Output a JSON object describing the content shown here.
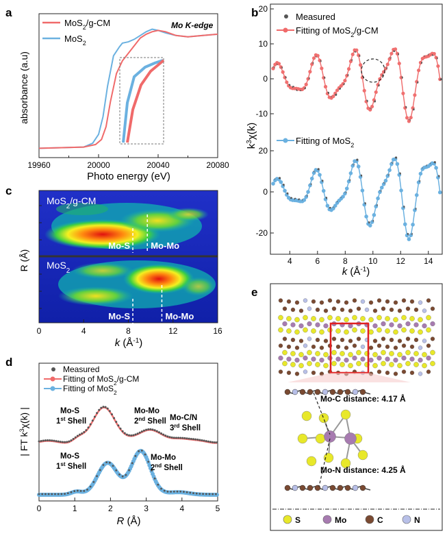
{
  "colors": {
    "mos2_gcm": "#f06a6a",
    "mos2": "#6bb1e0",
    "measured": "#555555",
    "axis": "#222222",
    "gridbox": "#888888"
  },
  "chart_data": [
    {
      "panel": "a",
      "type": "line",
      "annotation": "Mo K-edge",
      "xlabel": "Photo energy (eV)",
      "ylabel": "absorbance (a.u)",
      "xlim": [
        19960,
        20080
      ],
      "xticks": [
        "19960",
        "20000",
        "20040",
        "20080"
      ],
      "series": [
        {
          "name": "MoS",
          "sub": "2",
          "post": "/g-CM",
          "color": "#f06a6a",
          "x": [
            19960,
            19990,
            19998,
            20002,
            20005,
            20008,
            20012,
            20016,
            20020,
            20024,
            20028,
            20032,
            20036,
            20040,
            20045,
            20052,
            20060,
            20070,
            20080
          ],
          "y": [
            0.03,
            0.04,
            0.06,
            0.1,
            0.2,
            0.4,
            0.62,
            0.72,
            0.78,
            0.84,
            0.9,
            0.93,
            0.95,
            0.96,
            0.95,
            0.92,
            0.91,
            0.92,
            0.93
          ]
        },
        {
          "name": "MoS",
          "sub": "2",
          "post": "",
          "color": "#6bb1e0",
          "x": [
            19960,
            19990,
            19996,
            20000,
            20003,
            20006,
            20010,
            20014,
            20016,
            20020,
            20024,
            20028,
            20032,
            20036,
            20040,
            20045,
            20052,
            20060,
            20070,
            20080
          ],
          "y": [
            0.03,
            0.04,
            0.07,
            0.14,
            0.28,
            0.52,
            0.76,
            0.83,
            0.86,
            0.87,
            0.89,
            0.92,
            0.95,
            0.97,
            0.96,
            0.94,
            0.92,
            0.91,
            0.92,
            0.93
          ]
        }
      ]
    },
    {
      "panel": "b",
      "type": "scatter",
      "xlabel": "k (Å-1)",
      "ylabel": "k3χ(k)",
      "xlim": [
        2.6,
        15
      ],
      "xticks": [
        "4",
        "6",
        "8",
        "10",
        "12",
        "14"
      ],
      "top": {
        "ylim": [
          -12,
          22
        ],
        "yticks": [
          "-10",
          "0",
          "10",
          "20"
        ]
      },
      "bottom": {
        "ylim": [
          -24,
          28
        ],
        "yticks": [
          "-20",
          "0",
          "20"
        ]
      },
      "legend": [
        {
          "name": "Measured",
          "sub": "",
          "color": "#555555"
        },
        {
          "name": "Fitting of MoS",
          "sub": "2",
          "post": "/g-CM",
          "color": "#f06a6a"
        },
        {
          "name": "Fitting of MoS",
          "sub": "2",
          "post": "",
          "color": "#6bb1e0"
        }
      ]
    },
    {
      "panel": "c",
      "type": "heatmap",
      "xlabel": "k (Å-1)",
      "ylabel": "R (Å)",
      "xlim": [
        0,
        16
      ],
      "xticks": [
        "0",
        "4",
        "8",
        "12",
        "16"
      ],
      "maps": [
        {
          "title": "MoS",
          "sub": "2",
          "post": "/g-CM",
          "labels": [
            {
              "text": "Mo-S",
              "k": 8.4
            },
            {
              "text": "Mo-Mo",
              "k": 9.7
            }
          ]
        },
        {
          "title": "MoS",
          "sub": "2",
          "post": "",
          "labels": [
            {
              "text": "Mo-S",
              "k": 8.4
            },
            {
              "text": "Mo-Mo",
              "k": 11.0
            }
          ]
        }
      ]
    },
    {
      "panel": "d",
      "type": "line",
      "xlabel": "R (Å)",
      "ylabel": "| FT k3χ(k) |",
      "xlim": [
        0,
        5
      ],
      "xticks": [
        "0",
        "1",
        "2",
        "3",
        "4",
        "5"
      ],
      "legend": [
        {
          "name": "Measured",
          "sub": "",
          "post": "",
          "color": "#555555"
        },
        {
          "name": "Fitting of MoS",
          "sub": "2",
          "post": "/g-CM",
          "color": "#f06a6a"
        },
        {
          "name": "Fitting of MoS",
          "sub": "2",
          "post": "",
          "color": "#6bb1e0"
        }
      ],
      "annotations": [
        {
          "l1": "Mo-S",
          "l2a": "1",
          "l2sup": "st",
          "l2b": " Shell"
        },
        {
          "l1": "Mo-Mo",
          "l2a": "2",
          "l2sup": "nd",
          "l2b": " Shell"
        },
        {
          "l1": "Mo-C/N",
          "l2a": "3",
          "l2sup": "rd",
          "l2b": " Shell"
        },
        {
          "l1": "Mo-S",
          "l2a": "1",
          "l2sup": "st",
          "l2b": " Shell"
        },
        {
          "l1": "Mo-Mo",
          "l2a": "2",
          "l2sup": "nd",
          "l2b": " Shell"
        }
      ]
    }
  ],
  "panel_e": {
    "label": "e",
    "mo_c": "Mo-C distance: 4.17 Å",
    "mo_n": "Mo-N distance: 4.25 Å",
    "legend": [
      {
        "name": "S",
        "color": "#e8e82a"
      },
      {
        "name": "Mo",
        "color": "#a77bb0"
      },
      {
        "name": "C",
        "color": "#7a4a32"
      },
      {
        "name": "N",
        "color": "#b8c0e8"
      }
    ]
  },
  "panel_labels": [
    "a",
    "b",
    "c",
    "d",
    "e"
  ]
}
